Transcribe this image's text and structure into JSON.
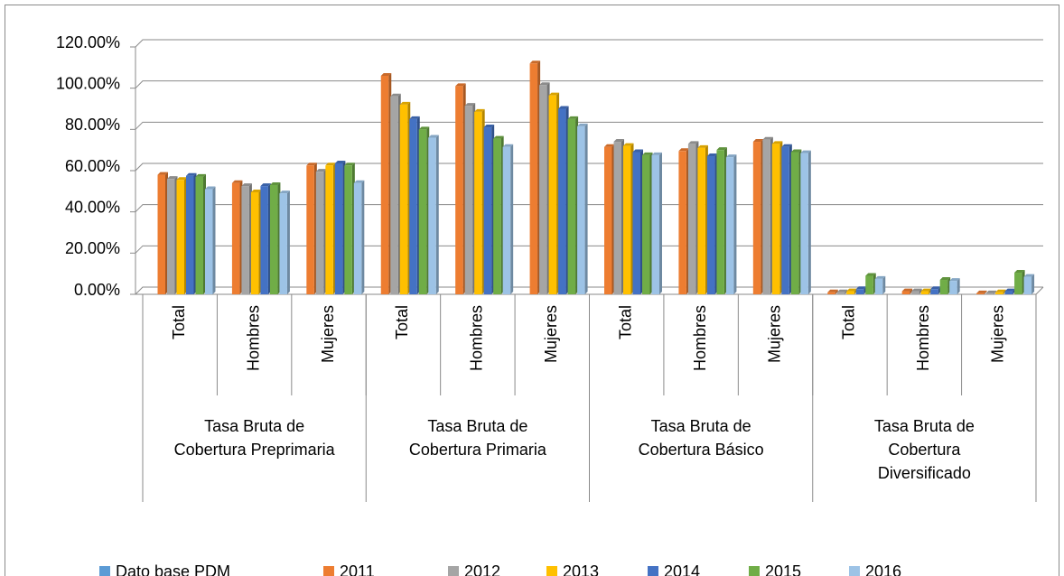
{
  "chart_data": {
    "type": "bar",
    "categories": [
      "Total",
      "Hombres",
      "Mujeres",
      "Total",
      "Hombres",
      "Mujeres",
      "Total",
      "Hombres",
      "Mujeres",
      "Total",
      "Hombres",
      "Mujeres"
    ],
    "groups": [
      "Tasa Bruta de Cobertura Preprimaria",
      "Tasa Bruta de Cobertura Primaria",
      "Tasa Bruta de Cobertura Básico",
      "Tasa Bruta de Cobertura Diversificado"
    ],
    "series": [
      {
        "name": "Dato base PDM",
        "color": "#5b9bd5",
        "values": [
          null,
          null,
          null,
          null,
          null,
          null,
          null,
          null,
          null,
          null,
          null,
          null
        ]
      },
      {
        "name": "2011",
        "color": "#ed7d31",
        "values": [
          58,
          54,
          62.5,
          106,
          101,
          112,
          71.5,
          69.5,
          74,
          1,
          1.5,
          0.5
        ]
      },
      {
        "name": "2012",
        "color": "#a5a5a5",
        "values": [
          56,
          52.5,
          59.5,
          96,
          91.5,
          101.5,
          74,
          73,
          75,
          1,
          1.5,
          0.5
        ]
      },
      {
        "name": "2013",
        "color": "#ffc000",
        "values": [
          55.5,
          49.5,
          62.5,
          92,
          88.5,
          96.5,
          72,
          71,
          73,
          1.5,
          1.5,
          1
        ]
      },
      {
        "name": "2014",
        "color": "#4472c4",
        "values": [
          57.5,
          52.5,
          63.5,
          85,
          81,
          90,
          69,
          67,
          71.5,
          2.5,
          2.5,
          1.5
        ]
      },
      {
        "name": "2015",
        "color": "#70ad47",
        "values": [
          57,
          53,
          62.5,
          80,
          75.5,
          85,
          67.5,
          70,
          69,
          9,
          7,
          10.5
        ]
      },
      {
        "name": "2016",
        "color": "#9dc3e6",
        "values": [
          51,
          49,
          54,
          76,
          71.5,
          81.5,
          67.5,
          66.5,
          68.5,
          7.5,
          6.5,
          8.5
        ]
      }
    ],
    "ylim": [
      0,
      120
    ],
    "yticks": [
      {
        "value": 0,
        "label": "0.00%"
      },
      {
        "value": 20,
        "label": "20.00%"
      },
      {
        "value": 40,
        "label": "40.00%"
      },
      {
        "value": 60,
        "label": "60.00%"
      },
      {
        "value": 80,
        "label": "80.00%"
      },
      {
        "value": 100,
        "label": "100.00%"
      },
      {
        "value": 120,
        "label": "120.00%"
      }
    ],
    "grid": true,
    "legend": "bottom"
  }
}
